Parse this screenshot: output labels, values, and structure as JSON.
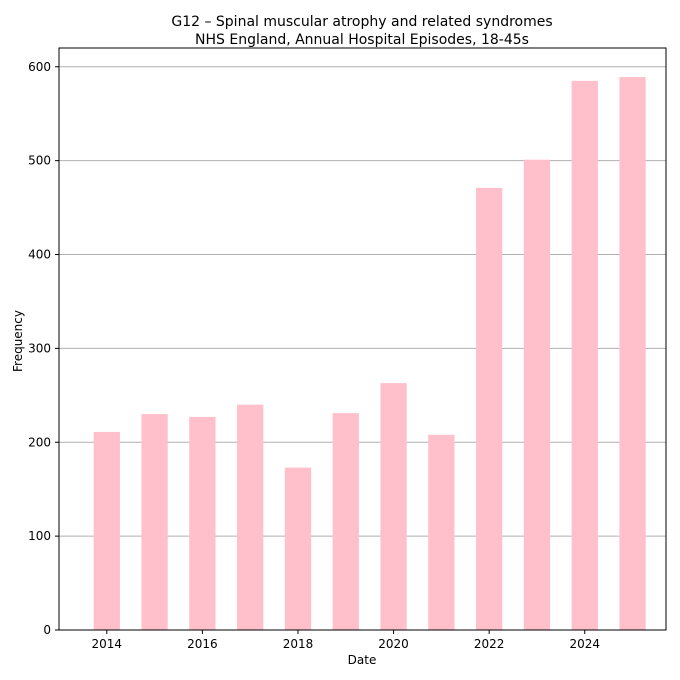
{
  "chart_data": {
    "type": "bar",
    "title": "G12 – Spinal muscular atrophy and related syndromes",
    "subtitle": "NHS England, Annual Hospital Episodes, 18-45s",
    "xlabel": "Date",
    "ylabel": "Frequency",
    "x": [
      2014,
      2015,
      2016,
      2017,
      2018,
      2019,
      2020,
      2021,
      2022,
      2023,
      2024,
      2025
    ],
    "values": [
      211,
      230,
      227,
      240,
      173,
      231,
      263,
      208,
      471,
      501,
      585,
      589
    ],
    "xlim": [
      2013.0,
      2025.7
    ],
    "ylim": [
      0,
      620
    ],
    "xticks": [
      2014,
      2016,
      2018,
      2020,
      2022,
      2024
    ],
    "yticks": [
      0,
      100,
      200,
      300,
      400,
      500,
      600
    ],
    "grid": "horizontal",
    "bar_color": "#ffc0cb",
    "legend": "none"
  }
}
